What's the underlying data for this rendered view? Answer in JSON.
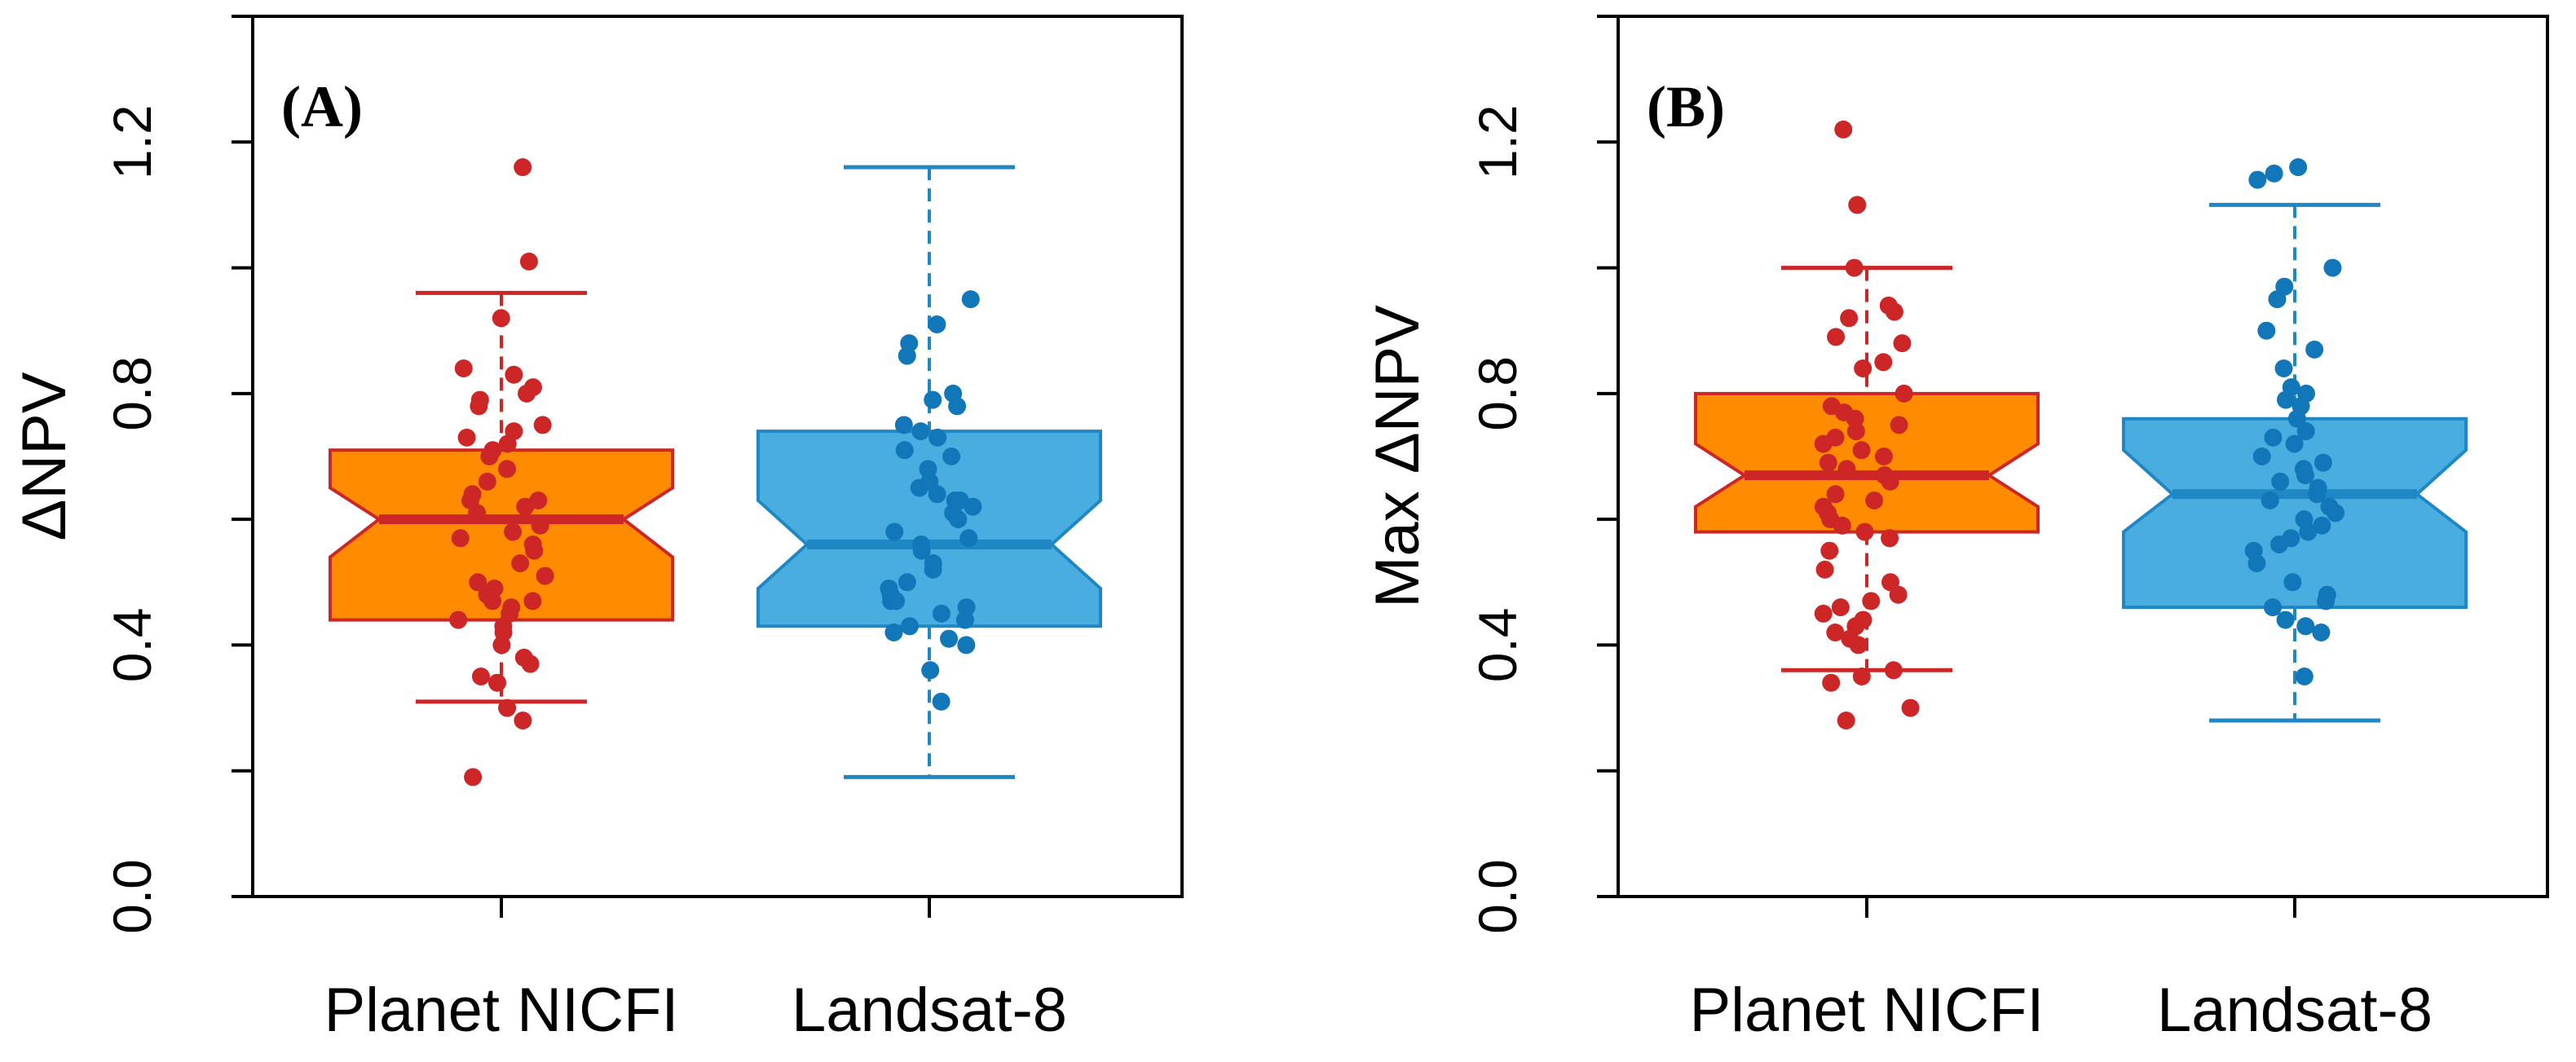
{
  "chart_data": [
    {
      "type": "boxplot",
      "panel_label": "(A)",
      "ylabel": "ΔNPV",
      "xlabel": "",
      "ylim": [
        0.0,
        1.4
      ],
      "yticks": [
        0.0,
        0.4,
        0.8,
        1.2
      ],
      "ytick_labels": [
        "0.0",
        "0.4",
        "0.8",
        "1.2"
      ],
      "categories": [
        "Planet NICFI",
        "Landsat-8"
      ],
      "boxes": [
        {
          "name": "Planet NICFI",
          "fill": "#FF8C00",
          "stroke": "#CD2626",
          "point_color": "#CD2626",
          "whisker_low": 0.31,
          "q1": 0.44,
          "notch_low": 0.54,
          "median": 0.6,
          "notch_high": 0.65,
          "q3": 0.71,
          "whisker_high": 0.96,
          "points": [
            0.19,
            0.28,
            0.3,
            0.34,
            0.35,
            0.37,
            0.38,
            0.4,
            0.42,
            0.43,
            0.44,
            0.45,
            0.46,
            0.47,
            0.47,
            0.48,
            0.49,
            0.5,
            0.51,
            0.53,
            0.55,
            0.56,
            0.57,
            0.58,
            0.59,
            0.61,
            0.62,
            0.63,
            0.63,
            0.64,
            0.66,
            0.68,
            0.7,
            0.71,
            0.72,
            0.73,
            0.74,
            0.75,
            0.78,
            0.79,
            0.8,
            0.81,
            0.83,
            0.84,
            0.92,
            1.01,
            1.16
          ]
        },
        {
          "name": "Landsat-8",
          "fill": "#4AADE0",
          "stroke": "#1F87C4",
          "point_color": "#1177B8",
          "whisker_low": 0.19,
          "q1": 0.43,
          "notch_low": 0.49,
          "median": 0.56,
          "notch_high": 0.63,
          "q3": 0.74,
          "whisker_high": 1.16,
          "points": [
            0.31,
            0.36,
            0.4,
            0.41,
            0.42,
            0.43,
            0.44,
            0.45,
            0.46,
            0.47,
            0.47,
            0.48,
            0.49,
            0.5,
            0.52,
            0.53,
            0.55,
            0.56,
            0.57,
            0.58,
            0.6,
            0.61,
            0.62,
            0.63,
            0.63,
            0.64,
            0.65,
            0.66,
            0.68,
            0.7,
            0.71,
            0.73,
            0.74,
            0.75,
            0.78,
            0.79,
            0.8,
            0.86,
            0.88,
            0.91,
            0.95
          ]
        }
      ]
    },
    {
      "type": "boxplot",
      "panel_label": "(B)",
      "ylabel": "Max ΔNPV",
      "xlabel": "",
      "ylim": [
        0.0,
        1.4
      ],
      "yticks": [
        0.0,
        0.4,
        0.8,
        1.2
      ],
      "ytick_labels": [
        "0.0",
        "0.4",
        "0.8",
        "1.2"
      ],
      "categories": [
        "Planet NICFI",
        "Landsat-8"
      ],
      "boxes": [
        {
          "name": "Planet NICFI",
          "fill": "#FF8C00",
          "stroke": "#CD2626",
          "point_color": "#CD2626",
          "whisker_low": 0.36,
          "q1": 0.58,
          "notch_low": 0.62,
          "median": 0.67,
          "notch_high": 0.72,
          "q3": 0.8,
          "whisker_high": 1.0,
          "points": [
            0.28,
            0.3,
            0.34,
            0.35,
            0.36,
            0.4,
            0.41,
            0.42,
            0.43,
            0.44,
            0.45,
            0.46,
            0.47,
            0.48,
            0.5,
            0.52,
            0.55,
            0.57,
            0.58,
            0.59,
            0.6,
            0.61,
            0.62,
            0.63,
            0.64,
            0.66,
            0.67,
            0.68,
            0.69,
            0.7,
            0.71,
            0.72,
            0.73,
            0.74,
            0.75,
            0.76,
            0.77,
            0.78,
            0.8,
            0.84,
            0.85,
            0.88,
            0.89,
            0.92,
            0.93,
            0.94,
            1.0,
            1.1,
            1.22
          ]
        },
        {
          "name": "Landsat-8",
          "fill": "#4AADE0",
          "stroke": "#1F87C4",
          "point_color": "#1177B8",
          "whisker_low": 0.28,
          "q1": 0.46,
          "notch_low": 0.58,
          "median": 0.64,
          "notch_high": 0.71,
          "q3": 0.76,
          "whisker_high": 1.1,
          "points": [
            0.35,
            0.42,
            0.43,
            0.44,
            0.46,
            0.47,
            0.48,
            0.5,
            0.53,
            0.55,
            0.56,
            0.57,
            0.58,
            0.59,
            0.6,
            0.61,
            0.62,
            0.63,
            0.64,
            0.65,
            0.66,
            0.67,
            0.68,
            0.69,
            0.7,
            0.72,
            0.73,
            0.74,
            0.76,
            0.78,
            0.79,
            0.8,
            0.81,
            0.84,
            0.87,
            0.9,
            0.95,
            0.97,
            1.0,
            1.14,
            1.15,
            1.16
          ]
        }
      ]
    }
  ]
}
